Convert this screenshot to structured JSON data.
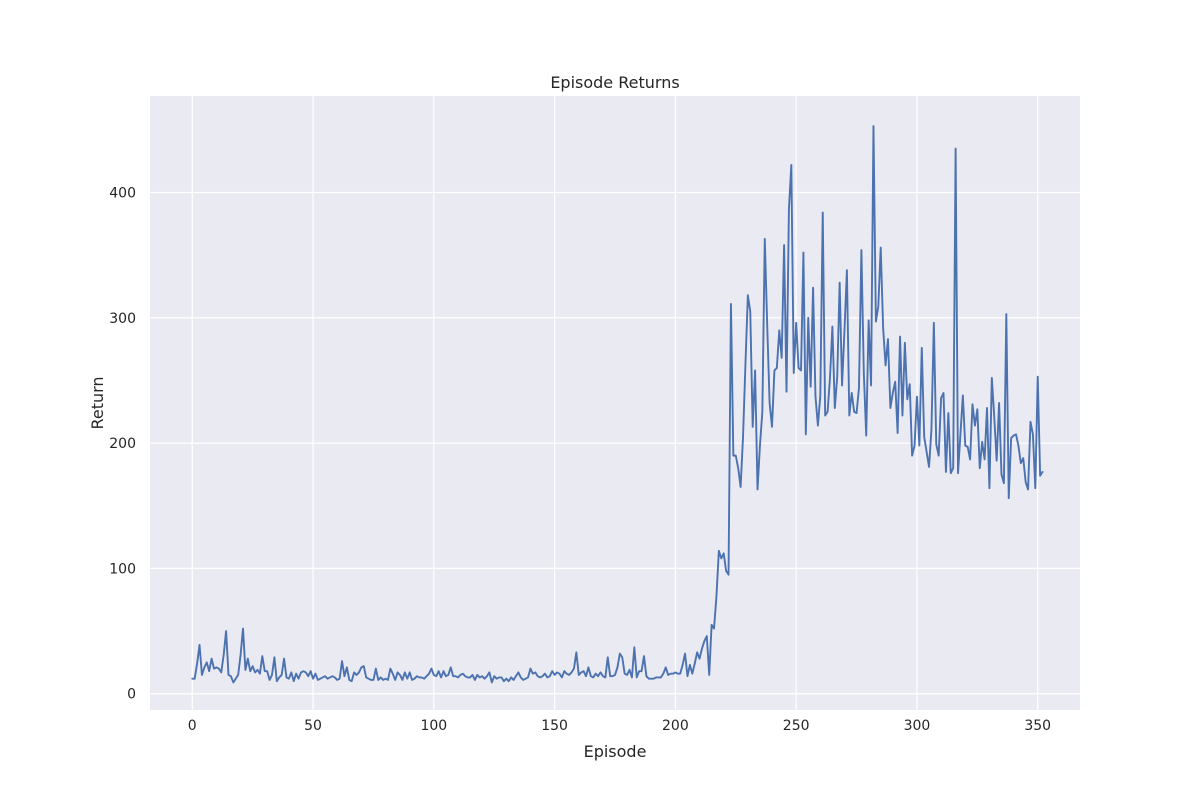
{
  "chart_data": {
    "type": "line",
    "title": "Episode Returns",
    "xlabel": "Episode",
    "ylabel": "Return",
    "xlim": [
      -17.5,
      367.5
    ],
    "ylim": [
      -13,
      477
    ],
    "xticks": [
      0,
      50,
      100,
      150,
      200,
      250,
      300,
      350
    ],
    "yticks": [
      0,
      100,
      200,
      300,
      400
    ],
    "grid": true,
    "colors": {
      "background": "#eaeaf2",
      "grid": "#ffffff",
      "line": "#4c72b0"
    },
    "series": [
      {
        "x_start": 0,
        "x_step": 1,
        "values": [
          12,
          12,
          24,
          39,
          15,
          21,
          25,
          18,
          28,
          20,
          21,
          20,
          17,
          31,
          50,
          15,
          14,
          9,
          12,
          15,
          31,
          52,
          19,
          28,
          18,
          22,
          17,
          19,
          16,
          30,
          18,
          18,
          11,
          15,
          29,
          10,
          13,
          15,
          28,
          13,
          12,
          17,
          10,
          16,
          12,
          17,
          18,
          17,
          14,
          18,
          12,
          16,
          11,
          12,
          13,
          14,
          12,
          13,
          14,
          13,
          11,
          12,
          26,
          14,
          21,
          11,
          10,
          17,
          15,
          17,
          21,
          22,
          13,
          12,
          11,
          11,
          20,
          11,
          13,
          11,
          12,
          11,
          20,
          16,
          11,
          17,
          15,
          11,
          17,
          12,
          17,
          11,
          12,
          14,
          13,
          13,
          12,
          14,
          16,
          20,
          15,
          14,
          18,
          13,
          18,
          14,
          15,
          21,
          14,
          14,
          13,
          15,
          16,
          14,
          13,
          13,
          15,
          11,
          15,
          13,
          14,
          12,
          14,
          17,
          9,
          14,
          12,
          13,
          13,
          10,
          12,
          10,
          13,
          11,
          14,
          17,
          13,
          11,
          12,
          13,
          20,
          16,
          17,
          14,
          13,
          14,
          16,
          13,
          14,
          18,
          15,
          17,
          16,
          13,
          18,
          16,
          15,
          17,
          20,
          33,
          15,
          17,
          18,
          14,
          21,
          14,
          13,
          16,
          14,
          17,
          14,
          13,
          29,
          14,
          14,
          15,
          21,
          32,
          29,
          16,
          15,
          19,
          13,
          37,
          13,
          18,
          18,
          30,
          14,
          12,
          12,
          12,
          13,
          13,
          13,
          16,
          21,
          15,
          16,
          16,
          17,
          16,
          16,
          23,
          32,
          14,
          23,
          16,
          24,
          33,
          28,
          36,
          42,
          46,
          15,
          55,
          52,
          78,
          114,
          108,
          112,
          98,
          95,
          311,
          190,
          190,
          180,
          165,
          205,
          263,
          318,
          305,
          213,
          258,
          163,
          198,
          225,
          363,
          295,
          232,
          213,
          258,
          260,
          290,
          268,
          358,
          241,
          387,
          422,
          256,
          296,
          260,
          258,
          352,
          207,
          300,
          245,
          324,
          237,
          214,
          238,
          384,
          222,
          225,
          252,
          293,
          228,
          253,
          328,
          246,
          290,
          338,
          222,
          240,
          225,
          224,
          244,
          354,
          256,
          206,
          298,
          246,
          453,
          297,
          309,
          356,
          292,
          262,
          283,
          228,
          240,
          249,
          208,
          285,
          222,
          280,
          235,
          247,
          190,
          198,
          237,
          198,
          276,
          205,
          193,
          181,
          211,
          296,
          199,
          190,
          236,
          240,
          177,
          224,
          176,
          180,
          435,
          176,
          207,
          238,
          198,
          197,
          187,
          231,
          214,
          227,
          180,
          201,
          187,
          228,
          164,
          252,
          221,
          186,
          232,
          175,
          168,
          303,
          156,
          204,
          206,
          207,
          198,
          184,
          188,
          169,
          163,
          217,
          207,
          164,
          253,
          174,
          177
        ]
      }
    ]
  }
}
